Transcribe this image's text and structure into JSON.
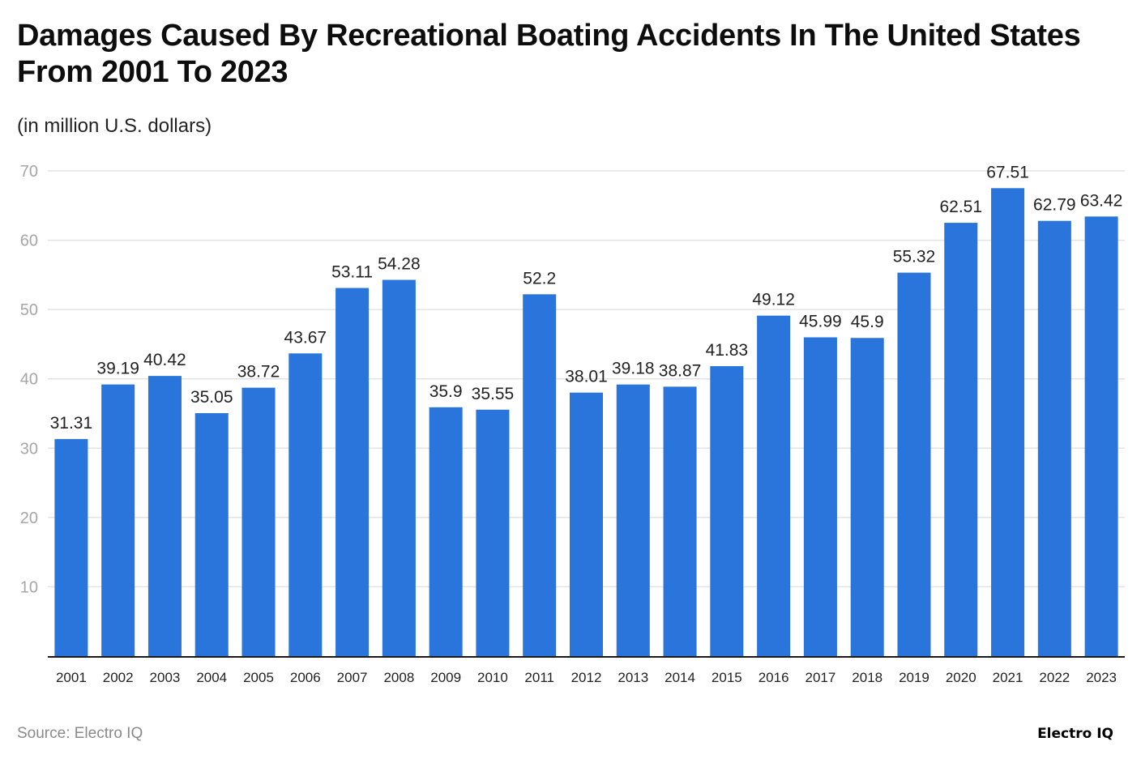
{
  "chart_data": {
    "type": "bar",
    "title": "Damages Caused By Recreational Boating Accidents In The United States From 2001 To 2023",
    "subtitle": "(in million U.S. dollars)",
    "xlabel": "",
    "ylabel": "",
    "categories": [
      "2001",
      "2002",
      "2003",
      "2004",
      "2005",
      "2006",
      "2007",
      "2008",
      "2009",
      "2010",
      "2011",
      "2012",
      "2013",
      "2014",
      "2015",
      "2016",
      "2017",
      "2018",
      "2019",
      "2020",
      "2021",
      "2022",
      "2023"
    ],
    "values": [
      31.31,
      39.19,
      40.42,
      35.05,
      38.72,
      43.67,
      53.11,
      54.28,
      35.9,
      35.55,
      52.2,
      38.01,
      39.18,
      38.87,
      41.83,
      49.12,
      45.99,
      45.9,
      55.32,
      62.51,
      67.51,
      62.79,
      63.42
    ],
    "data_labels": [
      "31.31",
      "39.19",
      "40.42",
      "35.05",
      "38.72",
      "43.67",
      "53.11",
      "54.28",
      "35.9",
      "35.55",
      "52.2",
      "38.01",
      "39.18",
      "38.87",
      "41.83",
      "49.12",
      "45.99",
      "45.9",
      "55.32",
      "62.51",
      "67.51",
      "62.79",
      "63.42"
    ],
    "ylim": [
      0,
      70
    ],
    "yticks": [
      10,
      20,
      30,
      40,
      50,
      60,
      70
    ],
    "grid": true,
    "legend": "none",
    "bar_color": "#2a75dc"
  },
  "footer": {
    "source": "Source: Electro IQ",
    "brand": "Electro IQ"
  }
}
